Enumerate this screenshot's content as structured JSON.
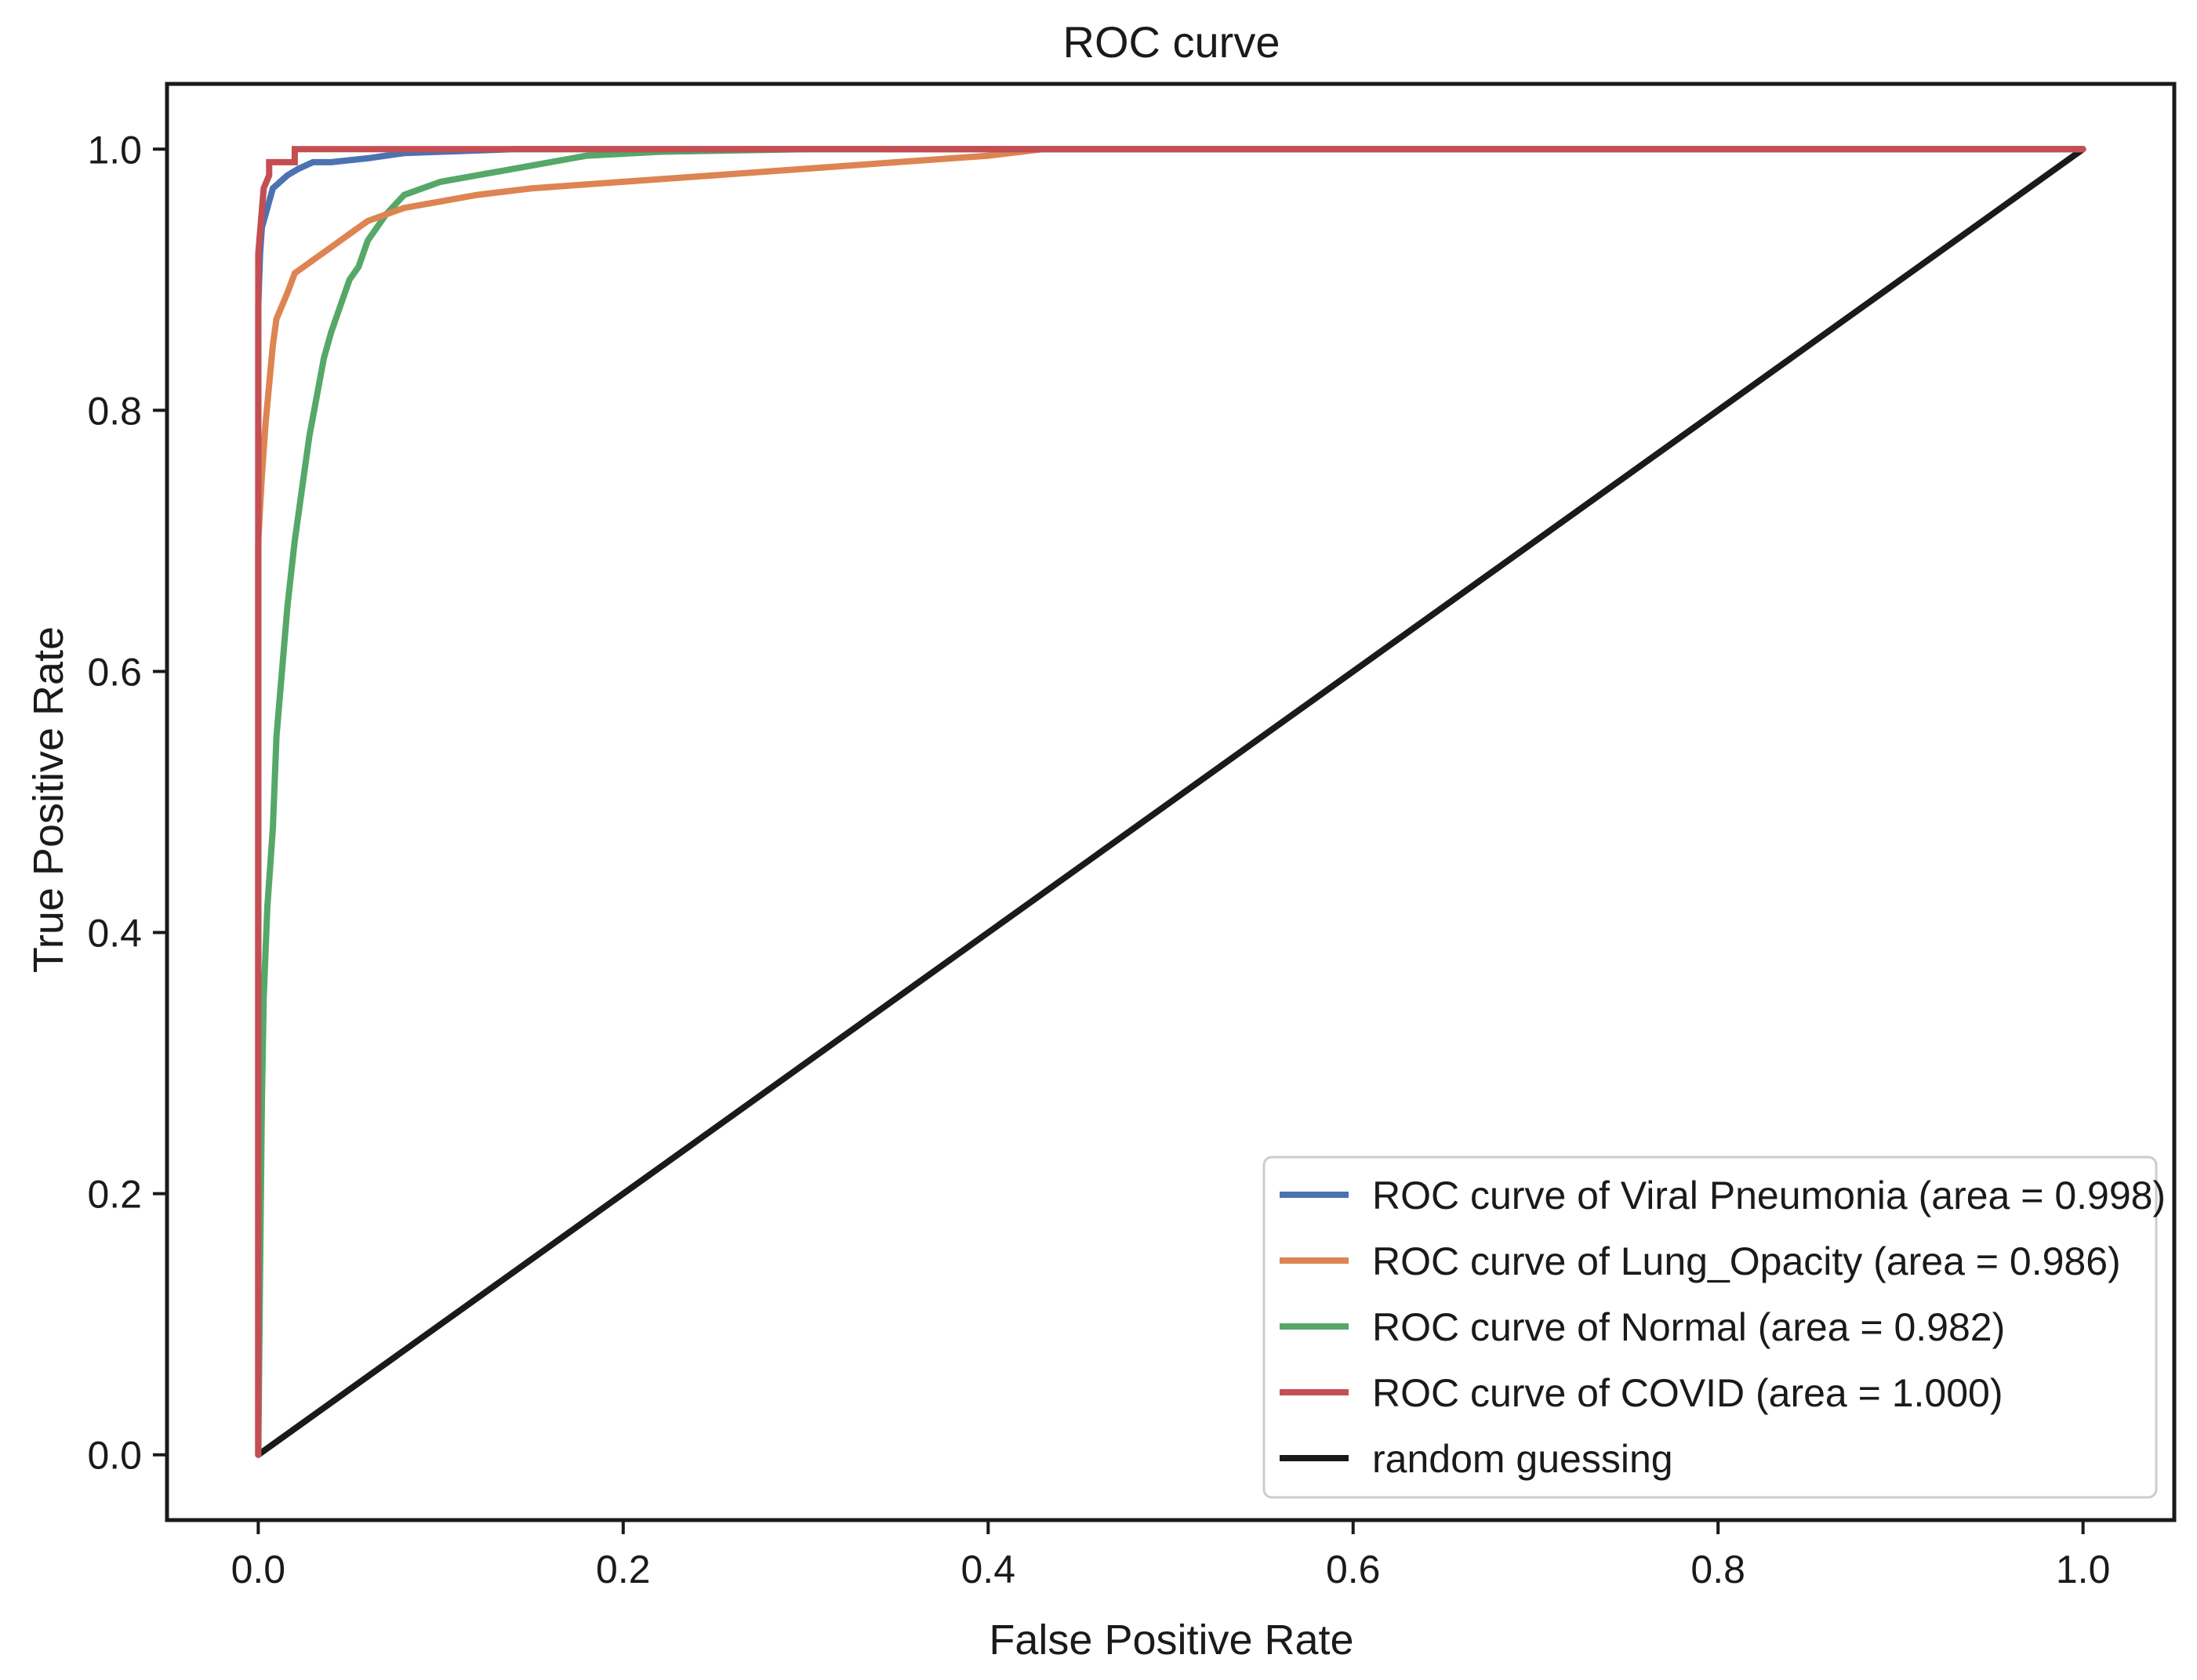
{
  "chart_data": {
    "type": "line",
    "title": "ROC curve",
    "xlabel": "False Positive Rate",
    "ylabel": "True Positive Rate",
    "xlim": [
      -0.05,
      1.05
    ],
    "ylim": [
      -0.05,
      1.05
    ],
    "xticks": [
      0.0,
      0.2,
      0.4,
      0.6,
      0.8,
      1.0
    ],
    "yticks": [
      0.0,
      0.2,
      0.4,
      0.6,
      0.8,
      1.0
    ],
    "xtick_labels": [
      "0.0",
      "0.2",
      "0.4",
      "0.6",
      "0.8",
      "1.0"
    ],
    "ytick_labels": [
      "0.0",
      "0.2",
      "0.4",
      "0.6",
      "0.8",
      "1.0"
    ],
    "grid": false,
    "legend_position": "lower-right",
    "series": [
      {
        "name": "ROC curve of Viral Pneumonia (area = 0.998)",
        "color": "#4c72b0",
        "x": [
          0.0,
          0.0,
          0.001,
          0.002,
          0.004,
          0.006,
          0.008,
          0.012,
          0.016,
          0.022,
          0.03,
          0.04,
          0.06,
          0.08,
          0.1,
          0.14,
          1.0
        ],
        "y": [
          0.0,
          0.88,
          0.92,
          0.94,
          0.95,
          0.96,
          0.97,
          0.975,
          0.98,
          0.985,
          0.99,
          0.99,
          0.993,
          0.997,
          0.998,
          1.0,
          1.0
        ]
      },
      {
        "name": "ROC curve of Lung_Opacity (area = 0.986)",
        "color": "#dd8452",
        "x": [
          0.0,
          0.0,
          0.002,
          0.004,
          0.006,
          0.008,
          0.01,
          0.013,
          0.016,
          0.02,
          0.025,
          0.03,
          0.04,
          0.05,
          0.06,
          0.08,
          0.1,
          0.12,
          0.15,
          0.2,
          0.25,
          0.3,
          0.35,
          0.4,
          0.43,
          0.5,
          1.0
        ],
        "y": [
          0.0,
          0.7,
          0.75,
          0.79,
          0.82,
          0.85,
          0.87,
          0.88,
          0.89,
          0.905,
          0.91,
          0.915,
          0.925,
          0.935,
          0.945,
          0.955,
          0.96,
          0.965,
          0.97,
          0.975,
          0.98,
          0.985,
          0.99,
          0.995,
          1.0,
          1.0,
          1.0
        ]
      },
      {
        "name": "ROC curve of Normal (area = 0.982)",
        "color": "#55a868",
        "x": [
          0.0,
          0.001,
          0.002,
          0.003,
          0.005,
          0.008,
          0.01,
          0.013,
          0.016,
          0.02,
          0.024,
          0.028,
          0.032,
          0.036,
          0.04,
          0.045,
          0.05,
          0.055,
          0.06,
          0.07,
          0.08,
          0.09,
          0.1,
          0.12,
          0.14,
          0.16,
          0.18,
          0.22,
          0.3,
          1.0
        ],
        "y": [
          0.0,
          0.14,
          0.27,
          0.35,
          0.42,
          0.48,
          0.55,
          0.6,
          0.65,
          0.7,
          0.74,
          0.78,
          0.81,
          0.84,
          0.86,
          0.88,
          0.9,
          0.91,
          0.93,
          0.95,
          0.965,
          0.97,
          0.975,
          0.98,
          0.985,
          0.99,
          0.995,
          0.998,
          1.0,
          1.0
        ]
      },
      {
        "name": "ROC curve of COVID (area = 1.000)",
        "color": "#c44e52",
        "x": [
          0.0,
          0.0,
          0.003,
          0.006,
          0.006,
          0.02,
          0.02,
          1.0
        ],
        "y": [
          0.0,
          0.92,
          0.97,
          0.98,
          0.99,
          0.99,
          1.0,
          1.0
        ]
      },
      {
        "name": "random guessing",
        "color": "#1a1a1a",
        "x": [
          0.0,
          1.0
        ],
        "y": [
          0.0,
          1.0
        ]
      }
    ]
  }
}
